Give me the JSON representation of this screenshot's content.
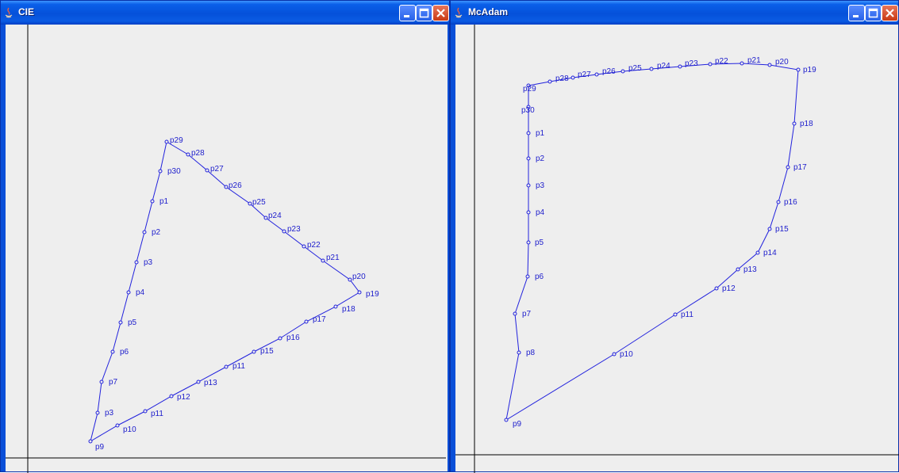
{
  "windows": [
    {
      "id": "cie",
      "title": "CIE",
      "icons": [
        "java-app-icon",
        "minimize-icon",
        "maximize-icon",
        "close-icon"
      ],
      "curve_color": "#2222dd"
    },
    {
      "id": "mcadam",
      "title": "McAdam",
      "icons": [
        "java-app-icon",
        "minimize-icon",
        "maximize-icon",
        "close-icon"
      ],
      "curve_color": "#2222dd"
    }
  ],
  "plots": {
    "cie": {
      "axes_color": "#000000",
      "points": [
        {
          "label": "p9"
        },
        {
          "label": "p10"
        },
        {
          "label": "p11"
        },
        {
          "label": "p12"
        },
        {
          "label": "p13"
        },
        {
          "label": "p11"
        },
        {
          "label": "p15"
        },
        {
          "label": "p16"
        },
        {
          "label": "p17"
        },
        {
          "label": "p18"
        },
        {
          "label": "p19"
        },
        {
          "label": "p20"
        },
        {
          "label": "p21"
        },
        {
          "label": "p22"
        },
        {
          "label": "p23"
        },
        {
          "label": "p24"
        },
        {
          "label": "p25"
        },
        {
          "label": "p26"
        },
        {
          "label": "p27"
        },
        {
          "label": "p28"
        },
        {
          "label": "p29"
        },
        {
          "label": "p30"
        },
        {
          "label": "p1"
        },
        {
          "label": "p2"
        },
        {
          "label": "p3"
        },
        {
          "label": "p4"
        },
        {
          "label": "p5"
        },
        {
          "label": "p6"
        },
        {
          "label": "p7"
        },
        {
          "label": "p3"
        }
      ]
    },
    "mcadam": {
      "axes_color": "#000000",
      "points": [
        {
          "label": "p29"
        },
        {
          "label": "p28"
        },
        {
          "label": "p27"
        },
        {
          "label": "p26"
        },
        {
          "label": "p25"
        },
        {
          "label": "p24"
        },
        {
          "label": "p23"
        },
        {
          "label": "p22"
        },
        {
          "label": "p21"
        },
        {
          "label": "p20"
        },
        {
          "label": "p19"
        },
        {
          "label": "p18"
        },
        {
          "label": "p17"
        },
        {
          "label": "p16"
        },
        {
          "label": "p15"
        },
        {
          "label": "p14"
        },
        {
          "label": "p13"
        },
        {
          "label": "p12"
        },
        {
          "label": "p11"
        },
        {
          "label": "p10"
        },
        {
          "label": "p9"
        },
        {
          "label": "p8"
        },
        {
          "label": "p7"
        },
        {
          "label": "p6"
        },
        {
          "label": "p5"
        },
        {
          "label": "p4"
        },
        {
          "label": "p3"
        },
        {
          "label": "p2"
        },
        {
          "label": "p1"
        },
        {
          "label": "p30"
        }
      ]
    }
  }
}
